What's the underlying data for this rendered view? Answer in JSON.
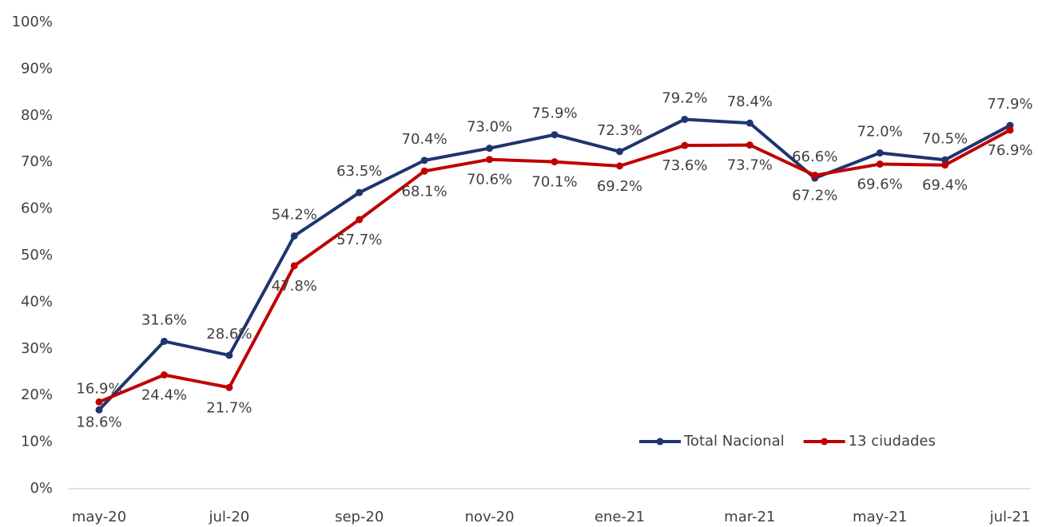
{
  "chart_data": {
    "type": "line",
    "categories": [
      "may-20",
      null,
      "jul-20",
      null,
      "sep-20",
      null,
      "nov-20",
      null,
      "ene-21",
      null,
      "mar-21",
      null,
      "may-21",
      null,
      "jul-21"
    ],
    "series": [
      {
        "name": "Total Nacional",
        "color": "#1f3470",
        "label_color": "#4a6aa0",
        "values": [
          16.9,
          31.6,
          28.6,
          54.2,
          63.5,
          70.4,
          73.0,
          75.9,
          72.3,
          79.2,
          78.4,
          66.6,
          72.0,
          70.5,
          77.9
        ],
        "value_labels": [
          "16.9%",
          "31.6%",
          "28.6%",
          "54.2%",
          "63.5%",
          "70.4%",
          "73.0%",
          "75.9%",
          "72.3%",
          "79.2%",
          "78.4%",
          "66.6%",
          "72.0%",
          "70.5%",
          "77.9%"
        ]
      },
      {
        "name": "13 ciudades",
        "color": "#c00000",
        "label_color": "#e8403a",
        "values": [
          18.6,
          24.4,
          21.7,
          47.8,
          57.7,
          68.1,
          70.6,
          70.1,
          69.2,
          73.6,
          73.7,
          67.2,
          69.6,
          69.4,
          76.9
        ],
        "value_labels": [
          "18.6%",
          "24.4%",
          "21.7%",
          "47.8%",
          "57.7%",
          "68.1%",
          "70.6%",
          "70.1%",
          "69.2%",
          "73.6%",
          "73.7%",
          "67.2%",
          "69.6%",
          "69.4%",
          "76.9%"
        ]
      }
    ],
    "ylim": [
      0,
      100
    ],
    "yticks": [
      {
        "value": 0,
        "label": "0%"
      },
      {
        "value": 10,
        "label": "10%"
      },
      {
        "value": 20,
        "label": "20%"
      },
      {
        "value": 30,
        "label": "30%"
      },
      {
        "value": 40,
        "label": "40%"
      },
      {
        "value": 50,
        "label": "50%"
      },
      {
        "value": 60,
        "label": "60%"
      },
      {
        "value": 70,
        "label": "70%"
      },
      {
        "value": 80,
        "label": "80%"
      },
      {
        "value": 90,
        "label": "90%"
      },
      {
        "value": 100,
        "label": "100%"
      }
    ],
    "grid": false,
    "legend": "lower right"
  }
}
